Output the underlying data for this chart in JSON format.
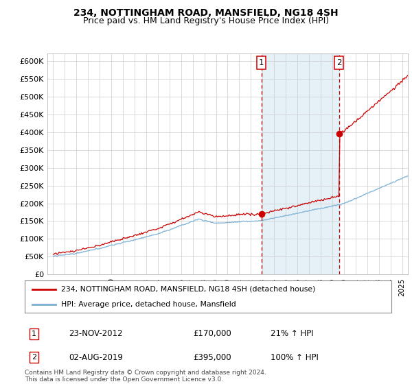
{
  "title": "234, NOTTINGHAM ROAD, MANSFIELD, NG18 4SH",
  "subtitle": "Price paid vs. HM Land Registry's House Price Index (HPI)",
  "ylabel_ticks": [
    "£0",
    "£50K",
    "£100K",
    "£150K",
    "£200K",
    "£250K",
    "£300K",
    "£350K",
    "£400K",
    "£450K",
    "£500K",
    "£550K",
    "£600K"
  ],
  "ylim": [
    0,
    620000
  ],
  "yticks": [
    0,
    50000,
    100000,
    150000,
    200000,
    250000,
    300000,
    350000,
    400000,
    450000,
    500000,
    550000,
    600000
  ],
  "xlim_start": 1994.5,
  "xlim_end": 2025.5,
  "sale1_x": 2012.9,
  "sale1_y": 170000,
  "sale2_x": 2019.58,
  "sale2_y": 395000,
  "legend_line1": "234, NOTTINGHAM ROAD, MANSFIELD, NG18 4SH (detached house)",
  "legend_line2": "HPI: Average price, detached house, Mansfield",
  "footnote": "Contains HM Land Registry data © Crown copyright and database right 2024.\nThis data is licensed under the Open Government Licence v3.0.",
  "red_color": "#cc0000",
  "blue_color": "#7aafd4",
  "bg_shaded": "#daeaf5",
  "dashed_color": "#cc0000",
  "title_fontsize": 10,
  "subtitle_fontsize": 9
}
